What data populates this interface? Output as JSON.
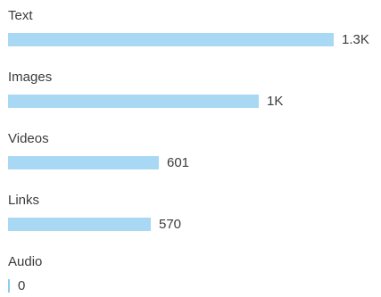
{
  "chart_data": {
    "type": "bar",
    "orientation": "horizontal",
    "categories": [
      "Text",
      "Images",
      "Videos",
      "Links",
      "Audio"
    ],
    "values": [
      1300,
      1000,
      601,
      570,
      0
    ],
    "value_labels": [
      "1.3K",
      "1K",
      "601",
      "570",
      "0"
    ],
    "bar_color": "#a9d8f5",
    "grid": false,
    "legend": "none"
  }
}
